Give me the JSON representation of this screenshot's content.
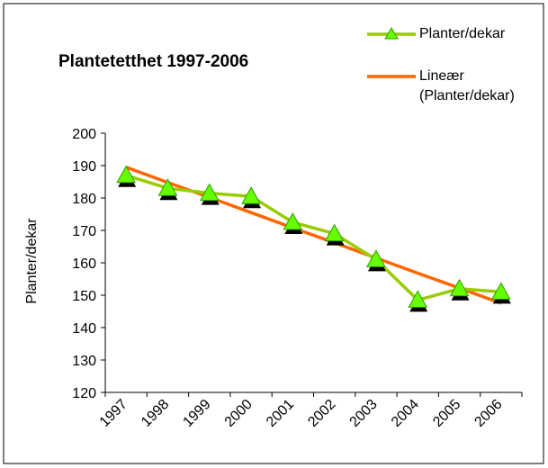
{
  "chart_data": {
    "type": "line",
    "title": "Plantetetthet 1997-2006",
    "y_label": "Planter/dekar",
    "categories": [
      "1997",
      "1998",
      "1999",
      "2000",
      "2001",
      "2002",
      "2003",
      "2004",
      "2005",
      "2006"
    ],
    "series": [
      {
        "name": "Planter/dekar",
        "color": "#99cc00",
        "marker": "triangle",
        "values": [
          187,
          183,
          181.5,
          180.5,
          172.5,
          169,
          161,
          148.5,
          152,
          151
        ]
      },
      {
        "name": "Lineær (Planter/dekar)",
        "color": "#ff6600",
        "values": [
          189.5,
          184.8,
          180.2,
          175.5,
          170.8,
          166.2,
          161.5,
          156.8,
          152.2,
          147.5
        ]
      }
    ],
    "ylim": [
      120,
      200
    ],
    "yticks": [
      120,
      130,
      140,
      150,
      160,
      170,
      180,
      190,
      200
    ],
    "legend": "top-right"
  }
}
